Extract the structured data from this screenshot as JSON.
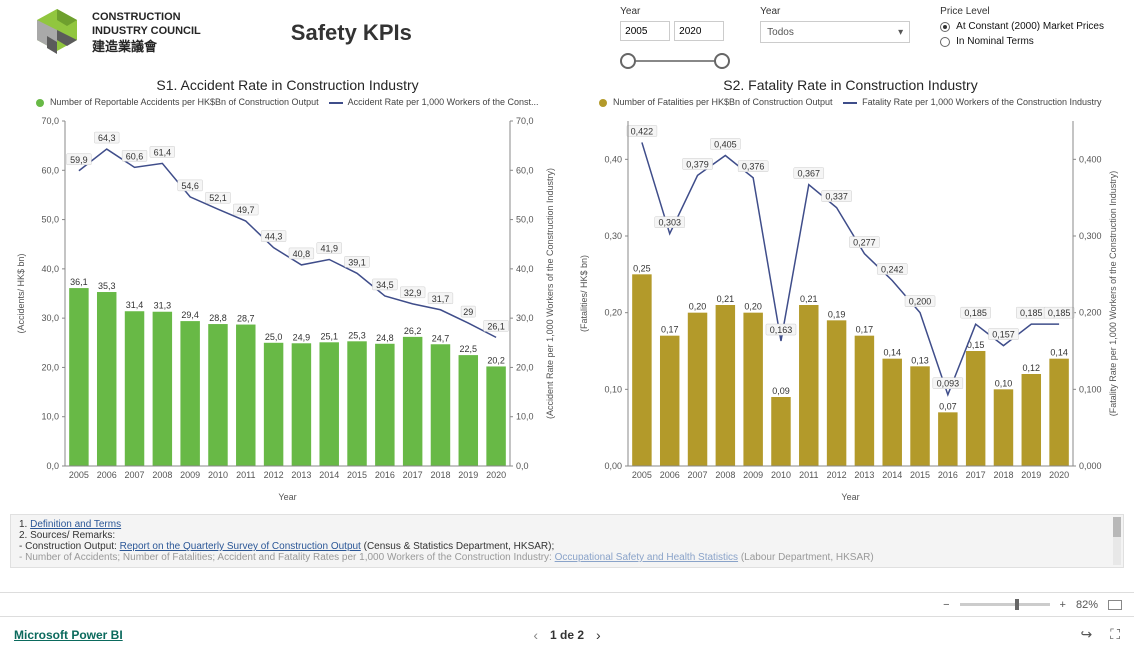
{
  "header": {
    "org_line1": "CONSTRUCTION",
    "org_line2": "INDUSTRY COUNCIL",
    "org_cn": "建造業議會",
    "title": "Safety KPIs",
    "logo_colors": {
      "green": "#91c63f",
      "dark": "#5b5b5b",
      "light": "#a9a9a9"
    }
  },
  "filters": {
    "year_label": "Year",
    "year_from": "2005",
    "year_to": "2020",
    "year2_label": "Year",
    "year2_value": "Todos",
    "price_label": "Price Level",
    "price_opt1": "At Constant (2000) Market Prices",
    "price_opt2": "In Nominal Terms",
    "price_selected": 0
  },
  "chart1": {
    "type": "bar+line",
    "title": "S1. Accident Rate in Construction Industry",
    "legend_bar": "Number of Reportable Accidents per HK$Bn of Construction Output",
    "legend_line": "Accident Rate per 1,000 Workers of the Const...",
    "x_label": "Year",
    "y1_label": "(Accidents/ HK$ bn)",
    "y2_label": "(Accident Rate per 1,000 Workers of the Construction Industry)",
    "categories": [
      "2005",
      "2006",
      "2007",
      "2008",
      "2009",
      "2010",
      "2011",
      "2012",
      "2013",
      "2014",
      "2015",
      "2016",
      "2017",
      "2018",
      "2019",
      "2020"
    ],
    "bar_values": [
      36.1,
      35.3,
      31.4,
      31.3,
      29.4,
      28.8,
      28.7,
      25.0,
      24.9,
      25.1,
      25.3,
      24.8,
      26.2,
      24.7,
      22.5,
      20.2
    ],
    "line_values": [
      59.9,
      64.3,
      60.6,
      61.4,
      54.6,
      52.1,
      49.7,
      44.3,
      40.8,
      41.9,
      39.1,
      34.5,
      32.9,
      31.7,
      29.0,
      26.1
    ],
    "bar_color": "#68b946",
    "line_color": "#3f4d8a",
    "y1lim": [
      0,
      70
    ],
    "y1_step": 10,
    "y2lim": [
      0,
      70
    ],
    "y2_step": 10,
    "background": "#ffffff",
    "grid_color": "#dddddd"
  },
  "chart2": {
    "type": "bar+line",
    "title": "S2. Fatality Rate in Construction Industry",
    "legend_bar": "Number of Fatalities per HK$Bn of Construction Output",
    "legend_line": "Fatality Rate per 1,000 Workers of the Construction Industry",
    "x_label": "Year",
    "y1_label": "(Fatalities/ HK$ bn)",
    "y2_label": "(Fatality Rate per 1,000 Workers of the Construction Industry)",
    "categories": [
      "2005",
      "2006",
      "2007",
      "2008",
      "2009",
      "2010",
      "2011",
      "2012",
      "2013",
      "2014",
      "2015",
      "2016",
      "2017",
      "2018",
      "2019",
      "2020"
    ],
    "bar_values": [
      0.25,
      0.17,
      0.2,
      0.21,
      0.2,
      0.09,
      0.21,
      0.19,
      0.17,
      0.14,
      0.13,
      0.07,
      0.15,
      0.1,
      0.12,
      0.14
    ],
    "line_values": [
      0.422,
      0.303,
      0.379,
      0.405,
      0.376,
      0.163,
      0.367,
      0.337,
      0.277,
      0.242,
      0.2,
      0.093,
      0.185,
      0.157,
      0.185,
      0.185
    ],
    "bar_color": "#b39a2a",
    "line_color": "#3f4d8a",
    "y1lim": [
      0,
      0.45
    ],
    "y1_step": 0.1,
    "y2lim": [
      0,
      0.45
    ],
    "y2_step": 0.1,
    "y1_ticks": [
      "0,00",
      "0,10",
      "0,20",
      "0,30",
      "0,40"
    ],
    "y2_ticks": [
      "0,000",
      "0,100",
      "0,200",
      "0,300",
      "0,400"
    ],
    "line_labels": [
      "0,422",
      "0,303",
      "0,379",
      "0,405",
      "0,376",
      "0,163",
      "0,367",
      "0,337",
      "0,277",
      "0,242",
      "0,200",
      "0,093",
      "0,185",
      "0,157",
      "0,185",
      "0,185"
    ],
    "background": "#ffffff",
    "grid_color": "#dddddd"
  },
  "notes": {
    "l1a": "1. ",
    "l1_link": "Definition and Terms",
    "l2": "2. Sources/ Remarks:",
    "l3a": "- Construction Output: ",
    "l3_link": "Report on the Quarterly Survey of Construction Output",
    "l3b": " (Census & Statistics Department, HKSAR);",
    "l4a": "- Number of Accidents; Number of Fatalities; Accident and Fatality Rates per 1,000 Workers of the Construction Industry: ",
    "l4_link": "Occupational Safety and Health Statistics",
    "l4b": " (Labour Department, HKSAR)"
  },
  "zoombar": {
    "minus": "−",
    "plus": "+",
    "pct": "82%"
  },
  "footer": {
    "brand": "Microsoft Power BI",
    "page": "1 de 2"
  }
}
